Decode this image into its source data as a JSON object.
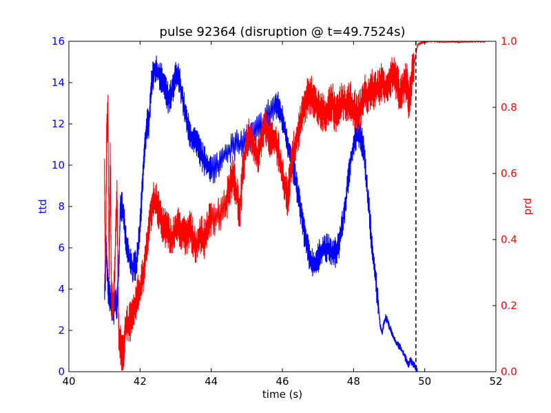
{
  "chart_data": {
    "type": "line",
    "title": "pulse 92364 (disruption @ t=49.7524s)",
    "xlabel": "time (s)",
    "ylabel_left": "ttd",
    "ylabel_right": "prd",
    "xlim": [
      40,
      52
    ],
    "ylim_left": [
      0,
      16
    ],
    "ylim_right": [
      0,
      1.0
    ],
    "x_ticks": [
      "40",
      "42",
      "44",
      "46",
      "48",
      "50",
      "52"
    ],
    "y_left_ticks": [
      "0",
      "2",
      "4",
      "6",
      "8",
      "10",
      "12",
      "14",
      "16"
    ],
    "y_right_ticks": [
      "0.0",
      "0.2",
      "0.4",
      "0.6",
      "0.8",
      "1.0"
    ],
    "disruption_time": 49.7524,
    "series": [
      {
        "name": "ttd",
        "axis": "left",
        "color": "#0000ff",
        "points": [
          [
            41.0,
            4.0
          ],
          [
            41.05,
            6.0
          ],
          [
            41.1,
            4.0
          ],
          [
            41.15,
            3.6
          ],
          [
            41.2,
            3.2
          ],
          [
            41.25,
            2.8
          ],
          [
            41.3,
            3.5
          ],
          [
            41.35,
            3.0
          ],
          [
            41.4,
            5.0
          ],
          [
            41.45,
            8.0
          ],
          [
            41.5,
            8.0
          ],
          [
            41.55,
            7.3
          ],
          [
            41.6,
            6.5
          ],
          [
            41.7,
            5.6
          ],
          [
            41.8,
            5.0
          ],
          [
            41.9,
            5.2
          ],
          [
            42.0,
            7.0
          ],
          [
            42.05,
            8.5
          ],
          [
            42.1,
            10.0
          ],
          [
            42.15,
            11.2
          ],
          [
            42.2,
            12.0
          ],
          [
            42.25,
            12.0
          ],
          [
            42.3,
            13.5
          ],
          [
            42.35,
            14.3
          ],
          [
            42.4,
            14.6
          ],
          [
            42.5,
            14.5
          ],
          [
            42.6,
            14.2
          ],
          [
            42.7,
            13.8
          ],
          [
            42.8,
            13.2
          ],
          [
            42.9,
            13.5
          ],
          [
            43.0,
            14.3
          ],
          [
            43.1,
            14.2
          ],
          [
            43.2,
            13.2
          ],
          [
            43.3,
            12.2
          ],
          [
            43.4,
            11.5
          ],
          [
            43.5,
            11.2
          ],
          [
            43.6,
            11.0
          ],
          [
            43.7,
            10.6
          ],
          [
            43.8,
            10.2
          ],
          [
            43.9,
            10.0
          ],
          [
            44.0,
            9.8
          ],
          [
            44.2,
            10.0
          ],
          [
            44.4,
            10.6
          ],
          [
            44.6,
            10.9
          ],
          [
            44.8,
            11.0
          ],
          [
            45.0,
            11.2
          ],
          [
            45.2,
            11.5
          ],
          [
            45.4,
            11.9
          ],
          [
            45.6,
            12.5
          ],
          [
            45.8,
            12.9
          ],
          [
            45.9,
            12.8
          ],
          [
            46.0,
            12.2
          ],
          [
            46.1,
            11.5
          ],
          [
            46.2,
            10.6
          ],
          [
            46.3,
            9.8
          ],
          [
            46.4,
            9.0
          ],
          [
            46.5,
            8.0
          ],
          [
            46.6,
            6.9
          ],
          [
            46.7,
            6.0
          ],
          [
            46.8,
            5.4
          ],
          [
            46.9,
            5.2
          ],
          [
            47.0,
            5.5
          ],
          [
            47.1,
            5.9
          ],
          [
            47.2,
            6.0
          ],
          [
            47.3,
            5.9
          ],
          [
            47.4,
            5.7
          ],
          [
            47.5,
            5.8
          ],
          [
            47.6,
            6.3
          ],
          [
            47.7,
            7.2
          ],
          [
            47.8,
            8.5
          ],
          [
            47.9,
            10.0
          ],
          [
            48.0,
            11.0
          ],
          [
            48.1,
            11.6
          ],
          [
            48.2,
            11.5
          ],
          [
            48.3,
            10.5
          ],
          [
            48.4,
            8.5
          ],
          [
            48.5,
            6.5
          ],
          [
            48.6,
            4.8
          ],
          [
            48.7,
            3.2
          ],
          [
            48.75,
            2.2
          ],
          [
            48.8,
            1.9
          ],
          [
            48.85,
            2.3
          ],
          [
            48.9,
            2.6
          ],
          [
            48.95,
            2.5
          ],
          [
            49.0,
            2.2
          ],
          [
            49.1,
            1.8
          ],
          [
            49.2,
            1.4
          ],
          [
            49.3,
            1.2
          ],
          [
            49.4,
            0.9
          ],
          [
            49.5,
            0.5
          ],
          [
            49.55,
            0.3
          ],
          [
            49.6,
            0.6
          ],
          [
            49.65,
            0.4
          ],
          [
            49.7,
            0.3
          ],
          [
            49.75,
            0.2
          ],
          [
            49.8,
            0.0
          ]
        ]
      },
      {
        "name": "prd",
        "axis": "right",
        "color": "#ff0000",
        "points": [
          [
            41.0,
            0.6
          ],
          [
            41.03,
            0.25
          ],
          [
            41.06,
            0.7
          ],
          [
            41.1,
            0.8
          ],
          [
            41.13,
            0.3
          ],
          [
            41.16,
            0.65
          ],
          [
            41.2,
            0.22
          ],
          [
            41.25,
            0.2
          ],
          [
            41.3,
            0.35
          ],
          [
            41.35,
            0.55
          ],
          [
            41.4,
            0.12
          ],
          [
            41.45,
            0.08
          ],
          [
            41.5,
            0.05
          ],
          [
            41.55,
            0.08
          ],
          [
            41.6,
            0.14
          ],
          [
            41.7,
            0.15
          ],
          [
            41.8,
            0.16
          ],
          [
            41.9,
            0.22
          ],
          [
            42.0,
            0.25
          ],
          [
            42.1,
            0.3
          ],
          [
            42.2,
            0.4
          ],
          [
            42.3,
            0.48
          ],
          [
            42.4,
            0.52
          ],
          [
            42.5,
            0.5
          ],
          [
            42.6,
            0.46
          ],
          [
            42.7,
            0.44
          ],
          [
            42.8,
            0.42
          ],
          [
            42.9,
            0.4
          ],
          [
            43.0,
            0.43
          ],
          [
            43.1,
            0.44
          ],
          [
            43.2,
            0.42
          ],
          [
            43.3,
            0.4
          ],
          [
            43.4,
            0.44
          ],
          [
            43.5,
            0.4
          ],
          [
            43.6,
            0.38
          ],
          [
            43.7,
            0.42
          ],
          [
            43.8,
            0.4
          ],
          [
            43.9,
            0.44
          ],
          [
            44.0,
            0.46
          ],
          [
            44.2,
            0.48
          ],
          [
            44.4,
            0.5
          ],
          [
            44.5,
            0.55
          ],
          [
            44.6,
            0.6
          ],
          [
            44.7,
            0.55
          ],
          [
            44.8,
            0.48
          ],
          [
            44.9,
            0.62
          ],
          [
            45.0,
            0.7
          ],
          [
            45.1,
            0.72
          ],
          [
            45.2,
            0.68
          ],
          [
            45.3,
            0.65
          ],
          [
            45.4,
            0.7
          ],
          [
            45.5,
            0.75
          ],
          [
            45.6,
            0.72
          ],
          [
            45.7,
            0.7
          ],
          [
            45.8,
            0.7
          ],
          [
            45.9,
            0.66
          ],
          [
            46.0,
            0.6
          ],
          [
            46.1,
            0.55
          ],
          [
            46.15,
            0.52
          ],
          [
            46.2,
            0.58
          ],
          [
            46.3,
            0.66
          ],
          [
            46.4,
            0.7
          ],
          [
            46.5,
            0.75
          ],
          [
            46.6,
            0.8
          ],
          [
            46.7,
            0.83
          ],
          [
            46.8,
            0.84
          ],
          [
            46.9,
            0.82
          ],
          [
            47.0,
            0.8
          ],
          [
            47.1,
            0.79
          ],
          [
            47.2,
            0.78
          ],
          [
            47.3,
            0.8
          ],
          [
            47.4,
            0.82
          ],
          [
            47.5,
            0.77
          ],
          [
            47.6,
            0.8
          ],
          [
            47.7,
            0.82
          ],
          [
            47.8,
            0.8
          ],
          [
            47.9,
            0.82
          ],
          [
            48.0,
            0.8
          ],
          [
            48.1,
            0.78
          ],
          [
            48.2,
            0.8
          ],
          [
            48.3,
            0.84
          ],
          [
            48.4,
            0.83
          ],
          [
            48.5,
            0.86
          ],
          [
            48.6,
            0.85
          ],
          [
            48.7,
            0.86
          ],
          [
            48.8,
            0.88
          ],
          [
            48.9,
            0.86
          ],
          [
            49.0,
            0.88
          ],
          [
            49.1,
            0.9
          ],
          [
            49.2,
            0.88
          ],
          [
            49.3,
            0.84
          ],
          [
            49.4,
            0.86
          ],
          [
            49.5,
            0.88
          ],
          [
            49.55,
            0.82
          ],
          [
            49.6,
            0.86
          ],
          [
            49.65,
            0.9
          ],
          [
            49.7,
            0.93
          ],
          [
            49.75,
            0.96
          ],
          [
            49.8,
            0.99
          ],
          [
            49.9,
            0.995
          ],
          [
            50.0,
            0.998
          ],
          [
            50.2,
            1.0
          ],
          [
            50.5,
            0.997
          ],
          [
            50.8,
            0.998
          ],
          [
            51.0,
            0.997
          ],
          [
            51.3,
            0.998
          ],
          [
            51.7,
            0.999
          ]
        ]
      }
    ]
  }
}
